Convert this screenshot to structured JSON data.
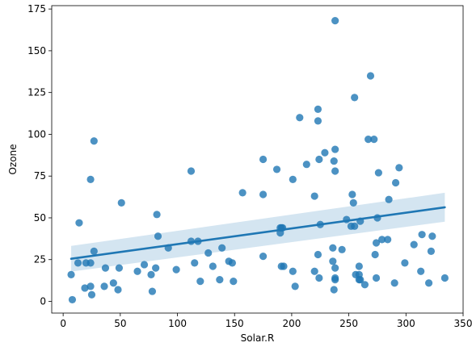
{
  "chart_data": {
    "type": "scatter",
    "xlabel": "Solar.R",
    "ylabel": "Ozone",
    "xlim": [
      -10,
      350
    ],
    "ylim": [
      -7,
      177
    ],
    "xticks": [
      0,
      50,
      100,
      150,
      200,
      250,
      300,
      350
    ],
    "yticks": [
      0,
      25,
      50,
      75,
      100,
      125,
      150,
      175
    ],
    "grid": false,
    "colors": {
      "points": "#1f77b4",
      "line": "#1f77b4",
      "band": "#c6dcec"
    },
    "series": [
      {
        "points": [
          [
            190,
            41
          ],
          [
            118,
            36
          ],
          [
            149,
            12
          ],
          [
            313,
            18
          ],
          [
            299,
            23
          ],
          [
            99,
            19
          ],
          [
            19,
            8
          ],
          [
            256,
            16
          ],
          [
            290,
            11
          ],
          [
            274,
            14
          ],
          [
            65,
            18
          ],
          [
            334,
            14
          ],
          [
            307,
            34
          ],
          [
            78,
            6
          ],
          [
            322,
            30
          ],
          [
            44,
            11
          ],
          [
            8,
            1
          ],
          [
            320,
            11
          ],
          [
            25,
            4
          ],
          [
            92,
            32
          ],
          [
            13,
            23
          ],
          [
            252,
            45
          ],
          [
            223,
            115
          ],
          [
            279,
            37
          ],
          [
            127,
            29
          ],
          [
            291,
            71
          ],
          [
            323,
            39
          ],
          [
            148,
            23
          ],
          [
            191,
            21
          ],
          [
            284,
            37
          ],
          [
            37,
            20
          ],
          [
            120,
            12
          ],
          [
            137,
            13
          ],
          [
            269,
            135
          ],
          [
            248,
            49
          ],
          [
            236,
            32
          ],
          [
            175,
            64
          ],
          [
            314,
            40
          ],
          [
            276,
            77
          ],
          [
            267,
            97
          ],
          [
            272,
            97
          ],
          [
            175,
            85
          ],
          [
            264,
            10
          ],
          [
            175,
            27
          ],
          [
            48,
            7
          ],
          [
            260,
            48
          ],
          [
            274,
            35
          ],
          [
            285,
            61
          ],
          [
            187,
            79
          ],
          [
            220,
            63
          ],
          [
            7,
            16
          ],
          [
            294,
            80
          ],
          [
            223,
            108
          ],
          [
            81,
            20
          ],
          [
            82,
            52
          ],
          [
            213,
            82
          ],
          [
            275,
            50
          ],
          [
            253,
            64
          ],
          [
            254,
            59
          ],
          [
            83,
            39
          ],
          [
            24,
            9
          ],
          [
            77,
            16
          ],
          [
            255,
            122
          ],
          [
            229,
            89
          ],
          [
            207,
            110
          ],
          [
            192,
            44
          ],
          [
            273,
            28
          ],
          [
            157,
            65
          ],
          [
            71,
            22
          ],
          [
            51,
            59
          ],
          [
            115,
            23
          ],
          [
            244,
            31
          ],
          [
            190,
            44
          ],
          [
            259,
            21
          ],
          [
            36,
            9
          ],
          [
            255,
            45
          ],
          [
            238,
            168
          ],
          [
            24,
            73
          ],
          [
            112,
            78
          ],
          [
            237,
            84
          ],
          [
            224,
            85
          ],
          [
            27,
            96
          ],
          [
            238,
            78
          ],
          [
            201,
            73
          ],
          [
            238,
            91
          ],
          [
            14,
            47
          ],
          [
            139,
            32
          ],
          [
            49,
            20
          ],
          [
            20,
            23
          ],
          [
            193,
            21
          ],
          [
            145,
            24
          ],
          [
            191,
            44
          ],
          [
            131,
            21
          ],
          [
            223,
            28
          ],
          [
            203,
            9
          ],
          [
            259,
            13
          ],
          [
            225,
            46
          ],
          [
            220,
            18
          ],
          [
            260,
            13
          ],
          [
            236,
            24
          ],
          [
            259,
            16
          ],
          [
            238,
            13
          ],
          [
            24,
            23
          ],
          [
            112,
            36
          ],
          [
            237,
            7
          ],
          [
            224,
            14
          ],
          [
            27,
            30
          ],
          [
            238,
            14
          ],
          [
            201,
            18
          ],
          [
            238,
            20
          ]
        ]
      }
    ],
    "regression": {
      "x_start": 7,
      "y_start": 25.5,
      "x_end": 334,
      "y_end": 56.3,
      "ci_start": [
        17.8,
        33.2
      ],
      "ci_end": [
        47.7,
        65.0
      ]
    }
  }
}
